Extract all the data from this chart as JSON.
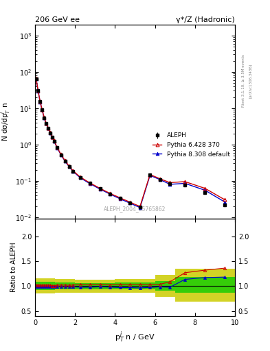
{
  "title_left": "206 GeV ee",
  "title_right": "γ*/Z (Hadronic)",
  "xlabel": "p$_T^j$ n / GeV",
  "ylabel_main": "N dσ/dp$_T^j$ n",
  "ylabel_ratio": "Ratio to ALEPH",
  "watermark": "ALEPH_2004_S5765862",
  "right_label_top": "Rivet 3.1.10, ≥ 3.5M events",
  "right_label_bot": "[arXiv:1306.3436]",
  "data_x": [
    0.05,
    0.15,
    0.25,
    0.35,
    0.45,
    0.55,
    0.65,
    0.75,
    0.85,
    0.95,
    1.1,
    1.3,
    1.5,
    1.7,
    1.9,
    2.25,
    2.75,
    3.25,
    3.75,
    4.25,
    4.75,
    5.25,
    5.75,
    6.25,
    6.75,
    7.5,
    8.5,
    9.5
  ],
  "data_y": [
    65.0,
    30.0,
    15.0,
    9.0,
    5.5,
    3.8,
    2.8,
    2.1,
    1.6,
    1.25,
    0.82,
    0.52,
    0.35,
    0.25,
    0.185,
    0.125,
    0.085,
    0.06,
    0.044,
    0.033,
    0.025,
    0.019,
    0.145,
    0.11,
    0.082,
    0.075,
    0.047,
    0.022
  ],
  "data_yerr": [
    2.0,
    1.0,
    0.5,
    0.3,
    0.2,
    0.15,
    0.1,
    0.08,
    0.06,
    0.05,
    0.03,
    0.02,
    0.013,
    0.009,
    0.007,
    0.005,
    0.003,
    0.002,
    0.0015,
    0.001,
    0.0009,
    0.0007,
    0.005,
    0.004,
    0.003,
    0.003,
    0.002,
    0.001
  ],
  "py6_x": [
    0.05,
    0.15,
    0.25,
    0.35,
    0.45,
    0.55,
    0.65,
    0.75,
    0.85,
    0.95,
    1.1,
    1.3,
    1.5,
    1.7,
    1.9,
    2.25,
    2.75,
    3.25,
    3.75,
    4.25,
    4.75,
    5.25,
    5.75,
    6.25,
    6.75,
    7.5,
    8.5,
    9.5
  ],
  "py6_y": [
    66.0,
    30.5,
    15.3,
    9.1,
    5.6,
    3.85,
    2.85,
    2.13,
    1.61,
    1.26,
    0.835,
    0.53,
    0.357,
    0.254,
    0.189,
    0.128,
    0.087,
    0.062,
    0.045,
    0.034,
    0.0258,
    0.0196,
    0.149,
    0.114,
    0.089,
    0.095,
    0.062,
    0.03
  ],
  "py8_x": [
    0.05,
    0.15,
    0.25,
    0.35,
    0.45,
    0.55,
    0.65,
    0.75,
    0.85,
    0.95,
    1.1,
    1.3,
    1.5,
    1.7,
    1.9,
    2.25,
    2.75,
    3.25,
    3.75,
    4.25,
    4.75,
    5.25,
    5.75,
    6.25,
    6.75,
    7.5,
    8.5,
    9.5
  ],
  "py8_y": [
    64.0,
    29.5,
    14.8,
    8.88,
    5.42,
    3.74,
    2.77,
    2.07,
    1.575,
    1.232,
    0.812,
    0.514,
    0.345,
    0.246,
    0.182,
    0.122,
    0.083,
    0.059,
    0.043,
    0.032,
    0.0242,
    0.0183,
    0.141,
    0.108,
    0.08,
    0.085,
    0.055,
    0.026
  ],
  "ratio_py6_x": [
    0.05,
    0.15,
    0.25,
    0.35,
    0.45,
    0.55,
    0.65,
    0.75,
    0.85,
    0.95,
    1.1,
    1.3,
    1.5,
    1.7,
    1.9,
    2.25,
    2.75,
    3.25,
    3.75,
    4.25,
    4.75,
    5.25,
    5.75,
    6.25,
    6.75,
    7.5,
    8.5,
    9.5
  ],
  "ratio_py6": [
    1.015,
    1.017,
    1.02,
    1.011,
    1.018,
    1.013,
    1.018,
    1.014,
    1.006,
    1.008,
    1.018,
    1.019,
    1.02,
    1.016,
    1.022,
    1.024,
    1.024,
    1.033,
    1.023,
    1.03,
    1.032,
    1.032,
    1.028,
    1.036,
    1.085,
    1.267,
    1.319,
    1.36
  ],
  "ratio_py8_x": [
    0.05,
    0.15,
    0.25,
    0.35,
    0.45,
    0.55,
    0.65,
    0.75,
    0.85,
    0.95,
    1.1,
    1.3,
    1.5,
    1.7,
    1.9,
    2.25,
    2.75,
    3.25,
    3.75,
    4.25,
    4.75,
    5.25,
    5.75,
    6.25,
    6.75,
    7.5,
    8.5,
    9.5
  ],
  "ratio_py8": [
    0.985,
    0.983,
    0.987,
    0.987,
    0.985,
    0.984,
    0.989,
    0.986,
    0.984,
    0.986,
    0.99,
    0.988,
    0.986,
    0.984,
    0.984,
    0.976,
    0.976,
    0.983,
    0.977,
    0.97,
    0.968,
    0.963,
    0.972,
    0.982,
    0.976,
    1.133,
    1.17,
    1.18
  ],
  "band_x_edges": [
    0.0,
    1.0,
    2.0,
    4.0,
    6.0,
    7.0,
    10.0
  ],
  "band_green_lo": [
    0.92,
    0.93,
    0.94,
    0.93,
    0.9,
    0.87,
    0.87
  ],
  "band_green_hi": [
    1.08,
    1.07,
    1.06,
    1.07,
    1.1,
    1.18,
    1.18
  ],
  "band_yellow_lo": [
    0.85,
    0.86,
    0.87,
    0.86,
    0.78,
    0.68,
    0.62
  ],
  "band_yellow_hi": [
    1.15,
    1.14,
    1.13,
    1.14,
    1.22,
    1.35,
    1.38
  ],
  "main_bg": "#ffffff",
  "data_color": "#000000",
  "py6_color": "#cc0000",
  "py8_color": "#0000cc",
  "green_color": "#00cc00",
  "yellow_color": "#cccc00",
  "xlim": [
    0,
    10
  ],
  "ylim_main": [
    0.009,
    2000
  ],
  "ylim_ratio": [
    0.4,
    2.35
  ],
  "ratio_yticks": [
    0.5,
    1.0,
    1.5,
    2.0
  ]
}
